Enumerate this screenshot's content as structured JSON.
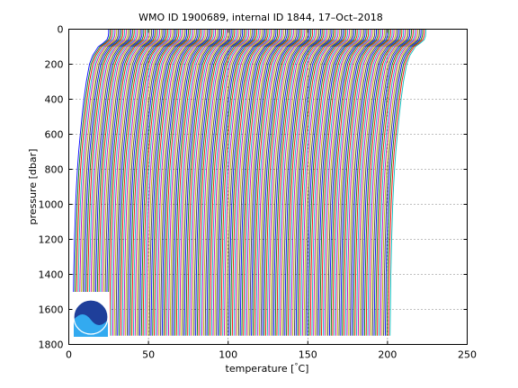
{
  "chart_data": {
    "type": "line",
    "title": "WMO ID 1900689, internal ID 1844, 17–Oct–2018",
    "xlabel": "temperature [",
    "xlabel_unit": "°",
    "xlabel_suffix": "C]",
    "ylabel": "pressure [dbar]",
    "xlim": [
      0,
      250
    ],
    "ylim": [
      0,
      1800
    ],
    "y_reversed": true,
    "grid": true,
    "x_ticks": [
      "0",
      "50",
      "100",
      "150",
      "200",
      "250"
    ],
    "x_tick_values": [
      0,
      50,
      100,
      150,
      200,
      250
    ],
    "y_ticks": [
      "0",
      "200",
      "400",
      "600",
      "800",
      "1000",
      "1200",
      "1400",
      "1600",
      "1800"
    ],
    "y_tick_values": [
      0,
      200,
      400,
      600,
      800,
      1000,
      1200,
      1400,
      1600,
      1800
    ],
    "series_colors": [
      "#0000ff",
      "#008000",
      "#ff0000",
      "#00bfbf",
      "#bf00bf",
      "#bfbf00",
      "#404040"
    ],
    "profile_count": 200,
    "profile_offset_step": 1,
    "profile_shape": {
      "pressure": [
        0,
        20,
        40,
        60,
        80,
        100,
        150,
        200,
        300,
        400,
        500,
        600,
        700,
        800,
        900,
        1000,
        1200,
        1400,
        1600,
        1750
      ],
      "temperature": [
        25,
        25,
        24.8,
        24,
        21.5,
        18.5,
        15,
        13,
        11,
        9.5,
        8.3,
        7.2,
        6.2,
        5.4,
        4.8,
        4.3,
        3.6,
        3.1,
        2.8,
        2.6
      ]
    },
    "logo_text": "NOAA",
    "logo_icon": "noaa-logo-icon"
  }
}
